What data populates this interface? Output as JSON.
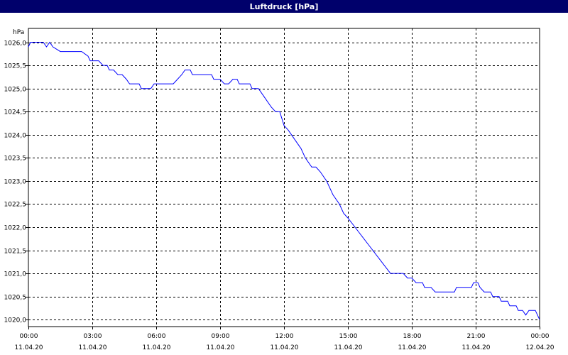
{
  "title": "Luftdruck [hPa]",
  "chart_data": {
    "type": "line",
    "title": "Luftdruck [hPa]",
    "unit_label": "hPa",
    "ylim": [
      1019.85,
      1026.3
    ],
    "xlim_hours": [
      0,
      24
    ],
    "grid": true,
    "y_ticks": [
      {
        "value": 1026.0,
        "label": "1026,0"
      },
      {
        "value": 1025.5,
        "label": "1025,5"
      },
      {
        "value": 1025.0,
        "label": "1025,0"
      },
      {
        "value": 1024.5,
        "label": "1024,5"
      },
      {
        "value": 1024.0,
        "label": "1024,0"
      },
      {
        "value": 1023.5,
        "label": "1023,5"
      },
      {
        "value": 1023.0,
        "label": "1023,0"
      },
      {
        "value": 1022.5,
        "label": "1022,5"
      },
      {
        "value": 1022.0,
        "label": "1022,0"
      },
      {
        "value": 1021.5,
        "label": "1021,5"
      },
      {
        "value": 1021.0,
        "label": "1021,0"
      },
      {
        "value": 1020.5,
        "label": "1020,5"
      },
      {
        "value": 1020.0,
        "label": "1020,0"
      }
    ],
    "x_ticks": [
      {
        "hour": 0,
        "time": "00:00",
        "date": "11.04.20"
      },
      {
        "hour": 3,
        "time": "03:00",
        "date": "11.04.20"
      },
      {
        "hour": 6,
        "time": "06:00",
        "date": "11.04.20"
      },
      {
        "hour": 9,
        "time": "09:00",
        "date": "11.04.20"
      },
      {
        "hour": 12,
        "time": "12:00",
        "date": "11.04.20"
      },
      {
        "hour": 15,
        "time": "15:00",
        "date": "11.04.20"
      },
      {
        "hour": 18,
        "time": "18:00",
        "date": "11.04.20"
      },
      {
        "hour": 21,
        "time": "21:00",
        "date": "11.04.20"
      },
      {
        "hour": 24,
        "time": "00:00",
        "date": "12.04.20"
      }
    ],
    "series": [
      {
        "color": "#0000ff",
        "points": [
          [
            0.0,
            1025.9
          ],
          [
            0.1,
            1026.0
          ],
          [
            0.7,
            1026.0
          ],
          [
            0.85,
            1025.9
          ],
          [
            1.0,
            1026.0
          ],
          [
            1.15,
            1025.9
          ],
          [
            1.5,
            1025.8
          ],
          [
            2.5,
            1025.8
          ],
          [
            2.8,
            1025.7
          ],
          [
            2.9,
            1025.6
          ],
          [
            3.3,
            1025.6
          ],
          [
            3.5,
            1025.5
          ],
          [
            3.7,
            1025.5
          ],
          [
            3.8,
            1025.4
          ],
          [
            4.0,
            1025.4
          ],
          [
            4.2,
            1025.3
          ],
          [
            4.4,
            1025.3
          ],
          [
            4.6,
            1025.2
          ],
          [
            4.75,
            1025.1
          ],
          [
            5.0,
            1025.1
          ],
          [
            5.2,
            1025.1
          ],
          [
            5.3,
            1025.0
          ],
          [
            5.5,
            1025.0
          ],
          [
            5.75,
            1025.0
          ],
          [
            5.9,
            1025.1
          ],
          [
            6.4,
            1025.1
          ],
          [
            6.8,
            1025.1
          ],
          [
            7.0,
            1025.2
          ],
          [
            7.2,
            1025.3
          ],
          [
            7.35,
            1025.4
          ],
          [
            7.6,
            1025.4
          ],
          [
            7.7,
            1025.3
          ],
          [
            8.3,
            1025.3
          ],
          [
            8.6,
            1025.3
          ],
          [
            8.7,
            1025.2
          ],
          [
            9.0,
            1025.2
          ],
          [
            9.2,
            1025.1
          ],
          [
            9.4,
            1025.1
          ],
          [
            9.6,
            1025.2
          ],
          [
            9.8,
            1025.2
          ],
          [
            9.9,
            1025.1
          ],
          [
            10.4,
            1025.1
          ],
          [
            10.5,
            1025.0
          ],
          [
            10.8,
            1025.0
          ],
          [
            11.1,
            1024.8
          ],
          [
            11.4,
            1024.6
          ],
          [
            11.6,
            1024.5
          ],
          [
            11.8,
            1024.5
          ],
          [
            12.0,
            1024.2
          ],
          [
            12.2,
            1024.1
          ],
          [
            12.5,
            1023.9
          ],
          [
            12.8,
            1023.7
          ],
          [
            13.0,
            1023.5
          ],
          [
            13.3,
            1023.3
          ],
          [
            13.5,
            1023.3
          ],
          [
            13.7,
            1023.2
          ],
          [
            14.0,
            1023.0
          ],
          [
            14.3,
            1022.7
          ],
          [
            14.6,
            1022.5
          ],
          [
            14.8,
            1022.3
          ],
          [
            15.0,
            1022.2
          ],
          [
            15.5,
            1021.9
          ],
          [
            16.0,
            1021.6
          ],
          [
            16.5,
            1021.3
          ],
          [
            17.0,
            1021.0
          ],
          [
            17.2,
            1021.0
          ],
          [
            17.6,
            1021.0
          ],
          [
            17.8,
            1020.9
          ],
          [
            18.0,
            1020.9
          ],
          [
            18.2,
            1020.8
          ],
          [
            18.5,
            1020.8
          ],
          [
            18.6,
            1020.7
          ],
          [
            18.9,
            1020.7
          ],
          [
            19.1,
            1020.6
          ],
          [
            19.5,
            1020.6
          ],
          [
            19.8,
            1020.6
          ],
          [
            20.0,
            1020.6
          ],
          [
            20.1,
            1020.7
          ],
          [
            20.4,
            1020.7
          ],
          [
            20.8,
            1020.7
          ],
          [
            20.9,
            1020.8
          ],
          [
            21.1,
            1020.8
          ],
          [
            21.2,
            1020.7
          ],
          [
            21.4,
            1020.6
          ],
          [
            21.7,
            1020.6
          ],
          [
            21.8,
            1020.5
          ],
          [
            22.1,
            1020.5
          ],
          [
            22.2,
            1020.4
          ],
          [
            22.5,
            1020.4
          ],
          [
            22.6,
            1020.3
          ],
          [
            22.9,
            1020.3
          ],
          [
            23.0,
            1020.2
          ],
          [
            23.2,
            1020.2
          ],
          [
            23.35,
            1020.1
          ],
          [
            23.5,
            1020.2
          ],
          [
            23.8,
            1020.2
          ],
          [
            23.9,
            1020.1
          ],
          [
            24.0,
            1020.0
          ]
        ]
      }
    ]
  }
}
